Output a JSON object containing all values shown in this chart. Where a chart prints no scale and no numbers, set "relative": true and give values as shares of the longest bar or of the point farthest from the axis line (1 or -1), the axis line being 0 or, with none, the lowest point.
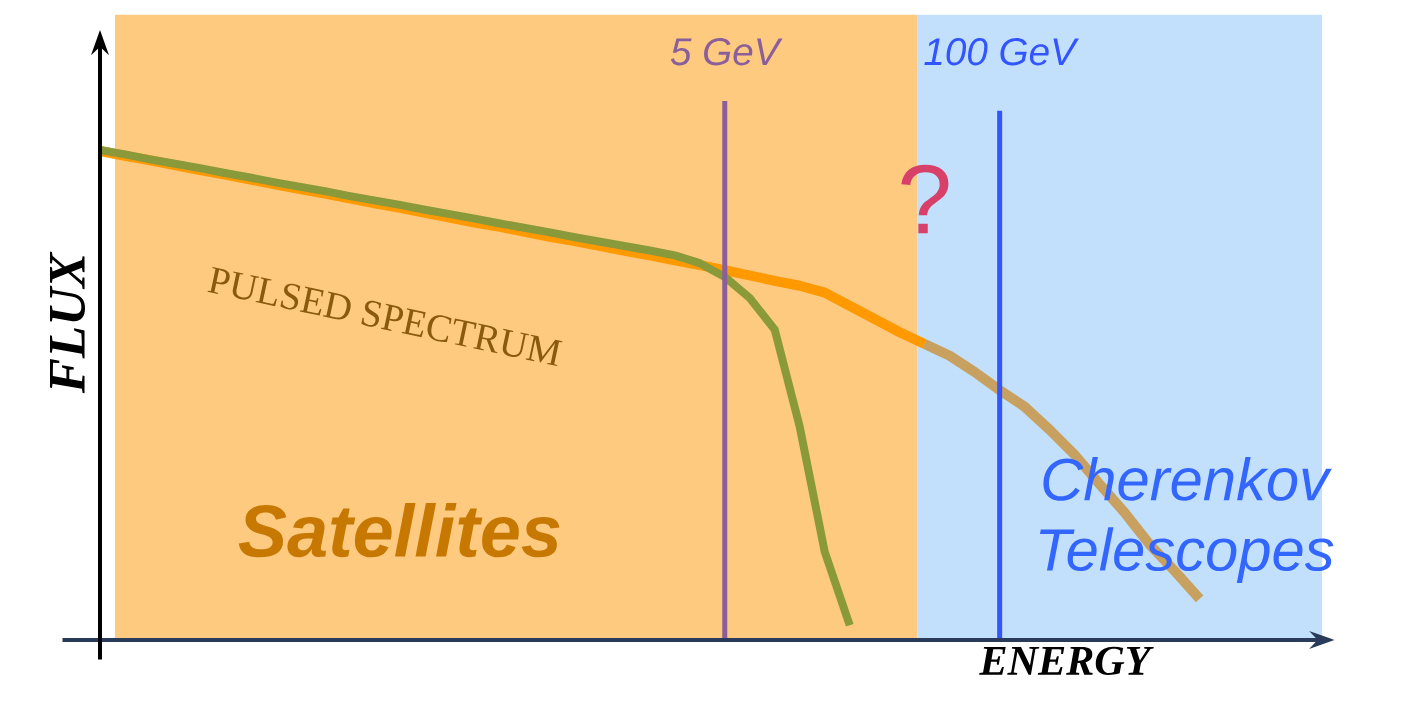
{
  "chart_data": {
    "type": "line",
    "xlabel": "ENERGY",
    "ylabel": "FLUX",
    "relative": true,
    "categories": [
      null,
      null,
      null,
      null,
      null,
      null,
      null,
      null,
      null,
      null,
      null,
      null,
      null,
      null,
      null,
      null,
      null,
      null,
      null,
      null,
      null,
      null,
      null,
      null,
      null,
      null,
      null,
      null,
      null,
      null,
      null,
      null,
      null,
      null,
      null,
      null,
      null,
      null,
      null,
      null,
      null,
      null,
      null,
      null,
      null
    ],
    "annotations": [
      "PULSED SPECTRUM",
      "?",
      "5 GeV",
      "100 GeV",
      "Satellites",
      "Cherenkov Telescopes"
    ],
    "series": [
      {
        "color": "#ff9900",
        "values": [
          0.998,
          0.988,
          0.979,
          0.969,
          0.959,
          0.95,
          0.94,
          0.93,
          0.92,
          0.911,
          0.901,
          0.891,
          0.882,
          0.872,
          0.862,
          0.852,
          0.843,
          0.833,
          0.823,
          0.814,
          0.804,
          0.794,
          0.785,
          0.775,
          0.765,
          0.755,
          0.744,
          0.733,
          0.723,
          0.709,
          0.682,
          0.655,
          0.628,
          0.604,
          null,
          null,
          null,
          null,
          null,
          null,
          null,
          null,
          null,
          null,
          null
        ]
      },
      {
        "color": "#c8a060",
        "values": [
          null,
          null,
          null,
          null,
          null,
          null,
          null,
          null,
          null,
          null,
          null,
          null,
          null,
          null,
          null,
          null,
          null,
          null,
          null,
          null,
          null,
          null,
          null,
          null,
          null,
          null,
          null,
          null,
          null,
          null,
          null,
          null,
          null,
          0.604,
          0.58,
          0.547,
          0.51,
          0.476,
          0.429,
          0.378,
          0.318,
          0.26,
          0.195,
          0.141,
          0.084
        ]
      },
      {
        "color": "#8a9a3a",
        "values": [
          1.0,
          0.991,
          0.981,
          0.972,
          0.963,
          0.953,
          0.944,
          0.934,
          0.925,
          0.916,
          0.906,
          0.897,
          0.888,
          0.878,
          0.869,
          0.86,
          0.85,
          0.841,
          0.832,
          0.822,
          0.813,
          0.804,
          0.795,
          0.785,
          0.769,
          0.741,
          0.698,
          0.633,
          0.435,
          0.18,
          0.03,
          null,
          null,
          null,
          null,
          null,
          null,
          null,
          null,
          null,
          null,
          null,
          null,
          null,
          null
        ]
      }
    ]
  }
}
